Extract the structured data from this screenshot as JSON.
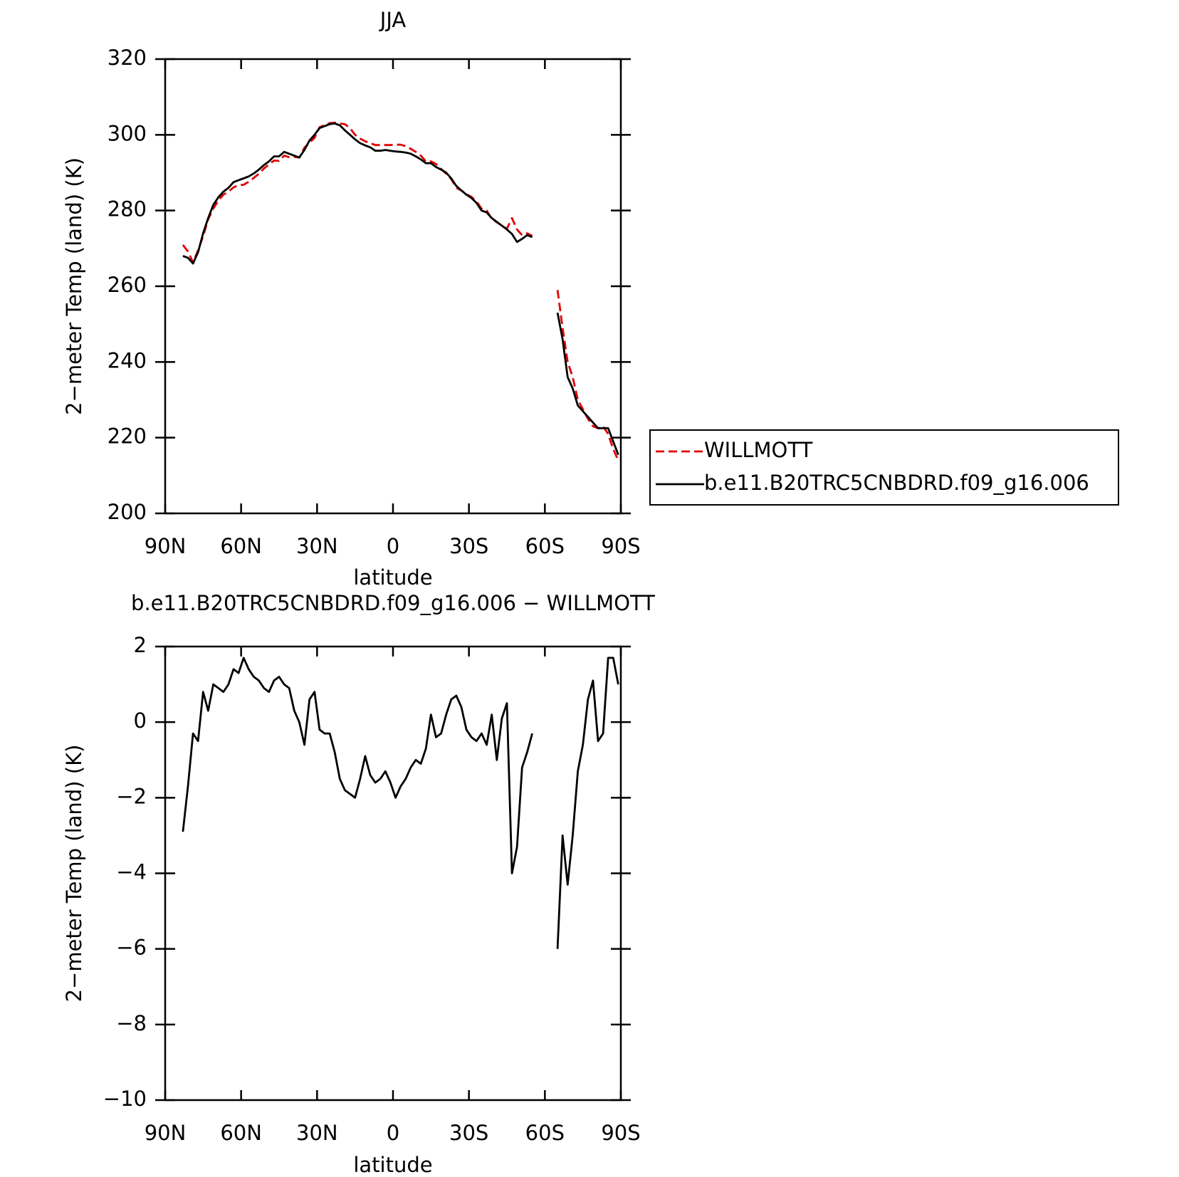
{
  "chart_data": [
    {
      "type": "line",
      "title": "JJA",
      "xlabel": "latitude",
      "ylabel": "2−meter Temp (land) (K)",
      "xlim": [
        90,
        -90
      ],
      "xticks": [
        {
          "value": 90,
          "label": "90N"
        },
        {
          "value": 60,
          "label": "60N"
        },
        {
          "value": 30,
          "label": "30N"
        },
        0,
        {
          "value": -30,
          "label": "30S"
        },
        {
          "value": -60,
          "label": "60S"
        },
        {
          "value": -90,
          "label": "90S"
        }
      ],
      "ylim": [
        200,
        320
      ],
      "yticks": [
        200,
        220,
        240,
        260,
        280,
        300,
        320
      ],
      "legend": "right",
      "x": [
        83,
        81,
        79,
        77,
        75,
        73,
        71,
        69,
        67,
        65,
        63,
        61,
        59,
        57,
        55,
        53,
        51,
        49,
        47,
        45,
        43,
        41,
        39,
        37,
        35,
        33,
        31,
        29,
        27,
        25,
        23,
        21,
        19,
        17,
        15,
        13,
        11,
        9,
        7,
        5,
        3,
        1,
        -1,
        -3,
        -5,
        -7,
        -9,
        -11,
        -13,
        -15,
        -17,
        -19,
        -21,
        -23,
        -25,
        -27,
        -29,
        -31,
        -33,
        -35,
        -37,
        -39,
        -41,
        -43,
        -45,
        -47,
        -49,
        -51,
        -53,
        -55,
        -57,
        -59,
        -61,
        -63,
        -65,
        -67,
        -69,
        -71,
        -73,
        -75,
        -77,
        -79,
        -81,
        -83,
        -85,
        -87,
        -89
      ],
      "series": [
        {
          "name": "WILLMOTT",
          "color": "#e00000",
          "dash": true,
          "values": [
            270.9,
            269.2,
            266.3,
            269.5,
            273.2,
            277.7,
            280.5,
            282.6,
            284.2,
            285,
            286.1,
            286.7,
            286.8,
            287.6,
            288.6,
            289.7,
            291.1,
            292.2,
            293.2,
            293.1,
            294.5,
            294.1,
            294.2,
            294,
            296.6,
            297.9,
            299.2,
            302,
            302.6,
            303.1,
            303.2,
            303,
            302.8,
            301.8,
            300,
            299,
            298.3,
            297.8,
            297.3,
            297.3,
            297.3,
            297.3,
            297.4,
            297.4,
            297,
            296.3,
            295.5,
            294.5,
            293,
            293,
            292.3,
            291,
            289.7,
            288.3,
            286,
            285.3,
            284.3,
            283.6,
            282.4,
            280.5,
            280,
            277.8,
            276.9,
            276,
            275.2,
            278,
            275,
            273.5,
            274,
            273.3,
            null,
            null,
            null,
            null,
            259,
            249,
            240,
            236,
            230,
            227.5,
            225,
            223,
            222.5,
            223,
            221,
            217,
            214
          ]
        },
        {
          "name": "b.e11.B20TRC5CNBDRD.f09_g16.006",
          "color": "#000000",
          "dash": false,
          "values": [
            268,
            267.5,
            266,
            269,
            274,
            278,
            281.5,
            283.5,
            285,
            286,
            287.5,
            288,
            288.5,
            289,
            289.8,
            290.8,
            292,
            293,
            294.3,
            294.3,
            295.5,
            295,
            294.5,
            294,
            296,
            298.5,
            300,
            301.8,
            302.3,
            302.8,
            303,
            302.5,
            301.2,
            300,
            298.8,
            297.8,
            297.2,
            296.7,
            295.8,
            295.8,
            296,
            295.8,
            295.6,
            295.5,
            295.3,
            295,
            294.3,
            293.5,
            292.5,
            292.5,
            291.5,
            290.8,
            290,
            288.5,
            286.5,
            285.3,
            284.2,
            283.3,
            282,
            280,
            279.5,
            278,
            277,
            276,
            275,
            273.8,
            271.7,
            272.5,
            273.5,
            273,
            null,
            null,
            null,
            null,
            253,
            246,
            236,
            233,
            228.5,
            227,
            225.5,
            224,
            222.5,
            222.5,
            222.5,
            219,
            215.5
          ]
        }
      ]
    },
    {
      "type": "line",
      "title": "b.e11.B20TRC5CNBDRD.f09_g16.006 − WILLMOTT",
      "xlabel": "latitude",
      "ylabel": "2−meter Temp (land) (K)",
      "xlim": [
        90,
        -90
      ],
      "xticks": [
        {
          "value": 90,
          "label": "90N"
        },
        {
          "value": 60,
          "label": "60N"
        },
        {
          "value": 30,
          "label": "30N"
        },
        0,
        {
          "value": -30,
          "label": "30S"
        },
        {
          "value": -60,
          "label": "60S"
        },
        {
          "value": -90,
          "label": "90S"
        }
      ],
      "ylim": [
        -10,
        2
      ],
      "yticks": [
        {
          "value": -10,
          "label": "−10"
        },
        {
          "value": -8,
          "label": "−8"
        },
        {
          "value": -6,
          "label": "−6"
        },
        {
          "value": -4,
          "label": "−4"
        },
        {
          "value": -2,
          "label": "−2"
        },
        0,
        2
      ],
      "x": [
        83,
        81,
        79,
        77,
        75,
        73,
        71,
        69,
        67,
        65,
        63,
        61,
        59,
        57,
        55,
        53,
        51,
        49,
        47,
        45,
        43,
        41,
        39,
        37,
        35,
        33,
        31,
        29,
        27,
        25,
        23,
        21,
        19,
        17,
        15,
        13,
        11,
        9,
        7,
        5,
        3,
        1,
        -1,
        -3,
        -5,
        -7,
        -9,
        -11,
        -13,
        -15,
        -17,
        -19,
        -21,
        -23,
        -25,
        -27,
        -29,
        -31,
        -33,
        -35,
        -37,
        -39,
        -41,
        -43,
        -45,
        -47,
        -49,
        -51,
        -53,
        -55,
        -57,
        -59,
        -61,
        -63,
        -65,
        -67,
        -69,
        -71,
        -73,
        -75,
        -77,
        -79,
        -81,
        -83,
        -85,
        -87,
        -89
      ],
      "color": "#000000",
      "values": [
        -2.9,
        -1.7,
        -0.3,
        -0.5,
        0.8,
        0.3,
        1.0,
        0.9,
        0.8,
        1.0,
        1.4,
        1.3,
        1.7,
        1.4,
        1.2,
        1.1,
        0.9,
        0.8,
        1.1,
        1.2,
        1.0,
        0.9,
        0.3,
        0.0,
        -0.6,
        0.6,
        0.8,
        -0.2,
        -0.3,
        -0.3,
        -0.8,
        -1.5,
        -1.8,
        -1.9,
        -2.0,
        -1.5,
        -0.9,
        -1.4,
        -1.6,
        -1.5,
        -1.3,
        -1.6,
        -2.0,
        -1.7,
        -1.5,
        -1.2,
        -1.0,
        -1.1,
        -0.7,
        0.2,
        -0.4,
        -0.3,
        0.2,
        0.6,
        0.7,
        0.4,
        -0.2,
        -0.4,
        -0.5,
        -0.3,
        -0.6,
        0.2,
        -1.0,
        0.1,
        0.5,
        -4.0,
        -3.3,
        -1.2,
        -0.8,
        -0.3,
        null,
        null,
        null,
        null,
        -6.0,
        -3.0,
        -4.3,
        -3.0,
        -1.3,
        -0.6,
        0.6,
        1.1,
        -0.5,
        -0.3,
        1.7,
        1.7,
        1.0
      ]
    }
  ]
}
